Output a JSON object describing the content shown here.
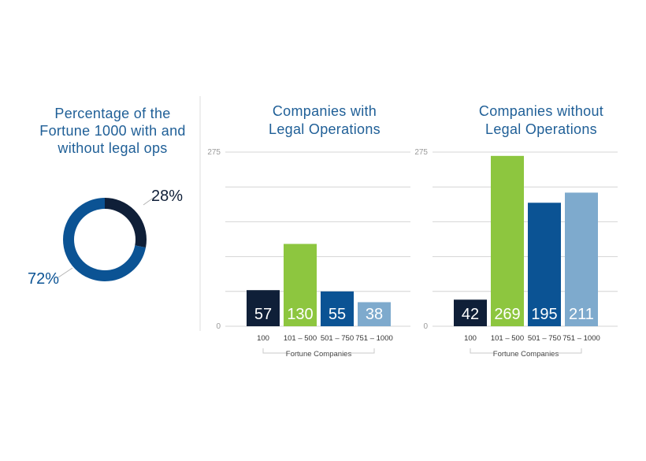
{
  "colors": {
    "navy": "#0f1f38",
    "green": "#8dc63f",
    "blue": "#0b5394",
    "lightblue": "#7eaacd",
    "title": "#1f5f97"
  },
  "chart_data": [
    {
      "type": "pie",
      "title": [
        "Percentage of the",
        "Fortune 1000 with and",
        "without legal ops"
      ],
      "slices": [
        {
          "value": 28,
          "label": "28%",
          "color": "#0f1f38"
        },
        {
          "value": 72,
          "label": "72%",
          "color": "#0b5394"
        }
      ]
    },
    {
      "type": "bar",
      "title": [
        "Companies with",
        "Legal Operations"
      ],
      "categories": [
        "100",
        "101 – 500",
        "501 – 750",
        "751 – 1000"
      ],
      "values": [
        57,
        130,
        55,
        38
      ],
      "colors": [
        "#0f1f38",
        "#8dc63f",
        "#0b5394",
        "#7eaacd"
      ],
      "ylim": [
        0,
        275
      ],
      "yticks": [
        0,
        275
      ],
      "grid": true,
      "xlabel": "Fortune Companies"
    },
    {
      "type": "bar",
      "title": [
        "Companies without",
        "Legal Operations"
      ],
      "categories": [
        "100",
        "101 – 500",
        "501 – 750",
        "751 – 1000"
      ],
      "values": [
        42,
        269,
        195,
        211
      ],
      "colors": [
        "#0f1f38",
        "#8dc63f",
        "#0b5394",
        "#7eaacd"
      ],
      "ylim": [
        0,
        275
      ],
      "yticks": [
        0,
        275
      ],
      "grid": true,
      "xlabel": "Fortune Companies"
    }
  ]
}
